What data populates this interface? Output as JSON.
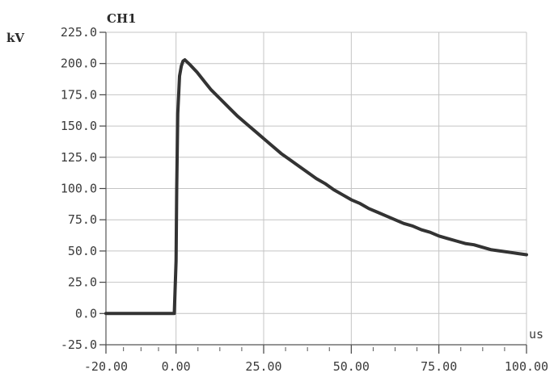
{
  "chart_data": {
    "type": "line",
    "title": "CH1",
    "ylabel": "kV",
    "xlabel": "us",
    "xlim": [
      -20,
      100
    ],
    "ylim": [
      -25,
      225
    ],
    "grid": true,
    "x_ticks": [
      -20,
      0,
      25,
      50,
      75,
      100
    ],
    "x_tick_labels": [
      "-20.00",
      "0.00",
      "25.00",
      "50.00",
      "75.00",
      "100.00"
    ],
    "y_ticks": [
      -25,
      0,
      25,
      50,
      75,
      100,
      125,
      150,
      175,
      200,
      225
    ],
    "y_tick_labels": [
      "-25.0",
      "0.0",
      "25.0",
      "50.0",
      "75.0",
      "100.0",
      "125.0",
      "150.0",
      "175.0",
      "200.0",
      "225.0"
    ],
    "series": [
      {
        "color": "#333333",
        "x": [
          -20,
          -15,
          -10,
          -5,
          -0.5,
          0,
          0.2,
          0.5,
          1,
          1.5,
          2,
          2.5,
          4,
          6,
          8,
          10,
          12.5,
          15,
          17.5,
          20,
          22.5,
          25,
          27.5,
          30,
          32.5,
          35,
          37.5,
          40,
          42.5,
          45,
          47.5,
          50,
          52.5,
          55,
          57.5,
          60,
          62.5,
          65,
          67.5,
          70,
          72.5,
          75,
          77.5,
          80,
          82.5,
          85,
          87.5,
          90,
          92.5,
          95,
          97.5,
          100
        ],
        "y": [
          0,
          0,
          0,
          0,
          0,
          42,
          100,
          160,
          190,
          198,
          202,
          203,
          199,
          193,
          186,
          179,
          172,
          165,
          158,
          152,
          146,
          140,
          134,
          128,
          123,
          118,
          113,
          108,
          104,
          99,
          95,
          91,
          88,
          84,
          81,
          78,
          75,
          72,
          70,
          67,
          65,
          62,
          60,
          58,
          56,
          55,
          53,
          51,
          50,
          49,
          48,
          47
        ]
      }
    ]
  }
}
